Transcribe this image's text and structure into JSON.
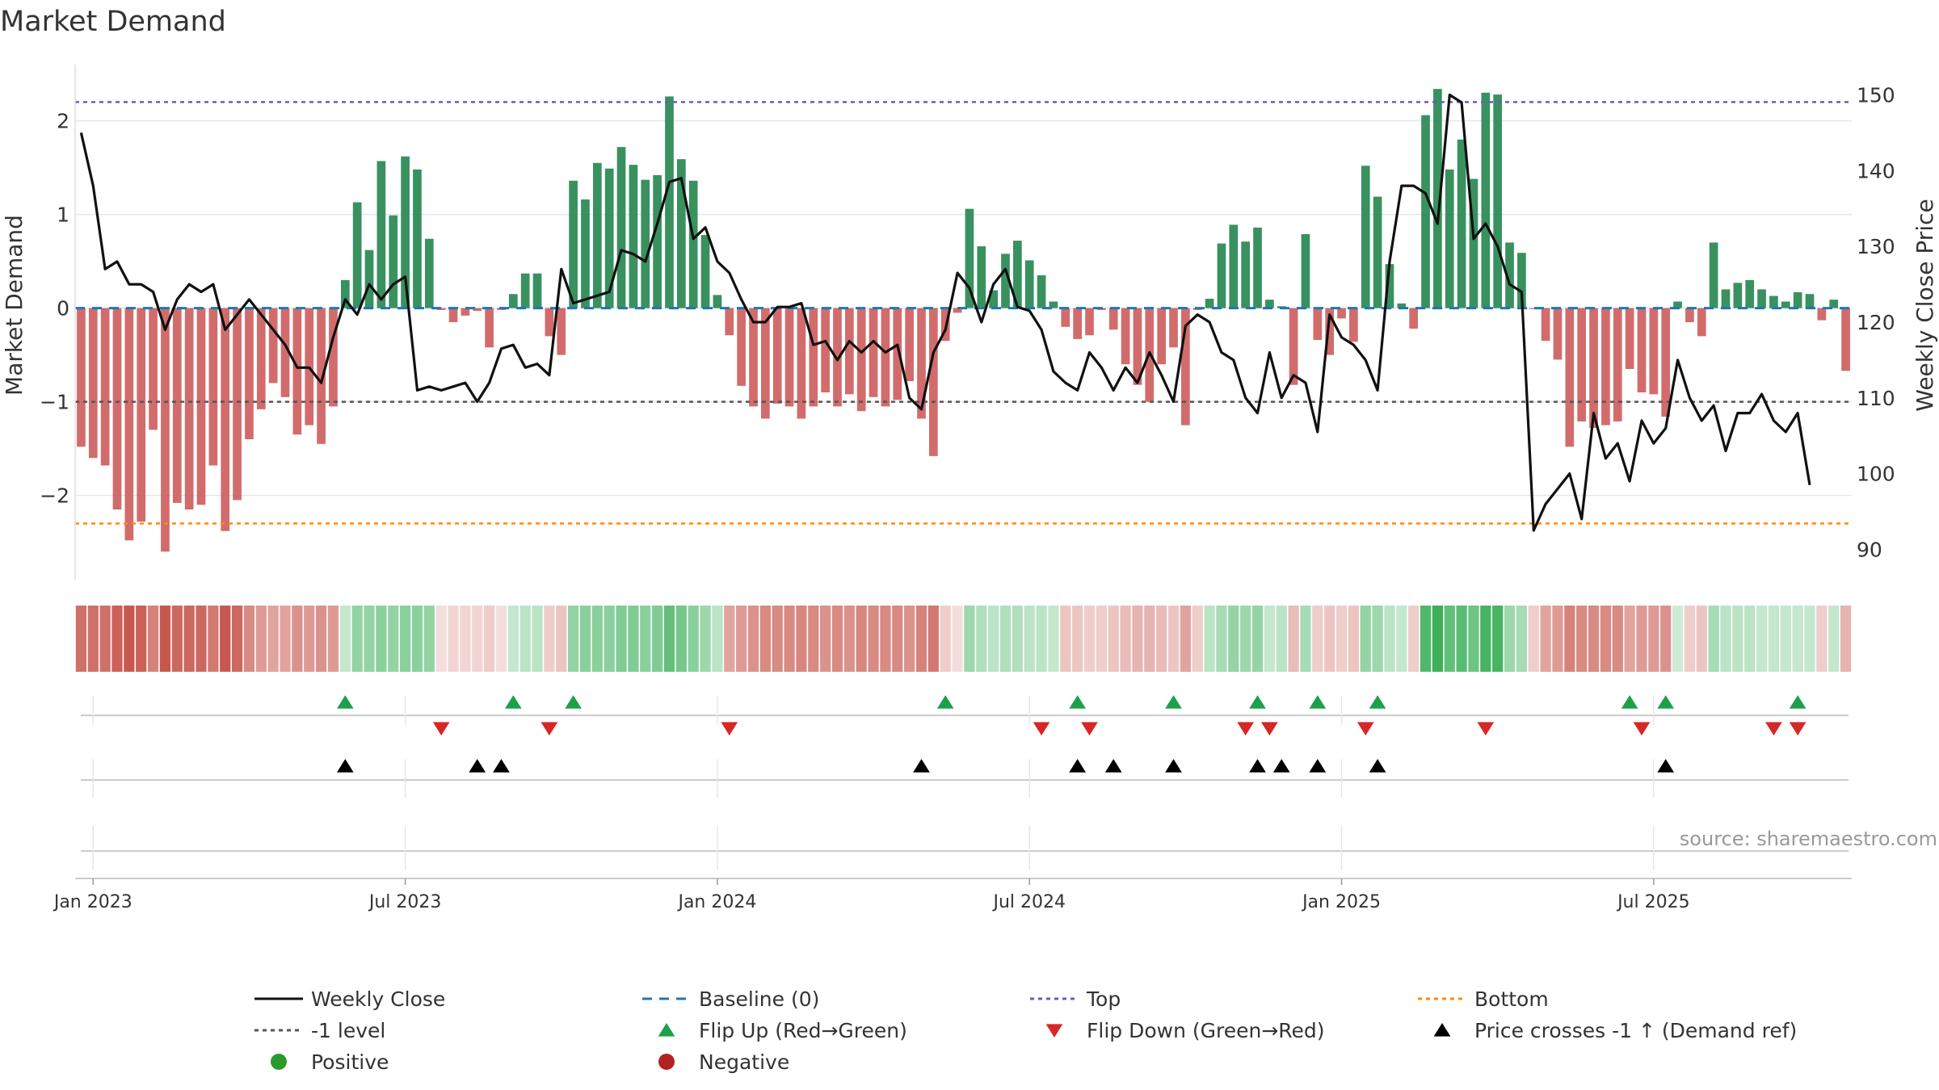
{
  "chart_data": {
    "type": "bar",
    "title": "Market Demand",
    "ylabel_left": "Market Demand",
    "ylabel_right": "Weekly Close Price",
    "ylim_left": [
      -2.9,
      2.6
    ],
    "ylim_right": [
      86,
      154
    ],
    "yticks_left": [
      2,
      1,
      0,
      -1,
      -2
    ],
    "yticks_left_labels": [
      "2",
      "1",
      "0",
      "−1",
      "−2"
    ],
    "yticks_right": [
      150,
      140,
      130,
      120,
      110,
      100,
      90
    ],
    "yticks_right_labels": [
      "150",
      "140",
      "130",
      "120",
      "110",
      "100",
      "90"
    ],
    "x_ticks": [
      "Jan 2023",
      "Jul 2023",
      "Jan 2024",
      "Jul 2024",
      "Jan 2025",
      "Jul 2025"
    ],
    "x_tick_weeks": [
      1,
      27,
      53,
      79,
      105,
      131
    ],
    "ref_lines": {
      "top": 2.2,
      "bottom": -2.3,
      "minus_one": -1,
      "baseline": 0
    },
    "demand": [
      -1.48,
      -1.6,
      -1.68,
      -2.15,
      -2.48,
      -2.28,
      -1.3,
      -2.6,
      -2.08,
      -2.15,
      -2.1,
      -1.68,
      -2.38,
      -2.05,
      -1.4,
      -1.08,
      -0.8,
      -0.95,
      -1.35,
      -1.25,
      -1.45,
      -1.05,
      0.3,
      1.13,
      0.62,
      1.57,
      0.99,
      1.62,
      1.48,
      0.74,
      -0.02,
      -0.15,
      -0.08,
      -0.03,
      -0.42,
      -0.02,
      0.15,
      0.37,
      0.37,
      -0.3,
      -0.5,
      1.36,
      1.16,
      1.55,
      1.49,
      1.72,
      1.53,
      1.37,
      1.42,
      2.26,
      1.59,
      1.36,
      0.78,
      0.14,
      -0.29,
      -0.83,
      -1.05,
      -1.18,
      -1.02,
      -1.05,
      -1.18,
      -1.05,
      -0.9,
      -1.05,
      -0.92,
      -1.1,
      -0.95,
      -1.05,
      -0.98,
      -0.78,
      -1.18,
      -1.58,
      -0.35,
      -0.05,
      1.06,
      0.66,
      0.19,
      0.58,
      0.72,
      0.51,
      0.35,
      0.07,
      -0.2,
      -0.33,
      -0.29,
      -0.02,
      -0.23,
      -0.6,
      -0.82,
      -1.0,
      -0.6,
      -0.42,
      -1.25,
      -0.02,
      0.1,
      0.69,
      0.89,
      0.71,
      0.86,
      0.09,
      0.02,
      -0.82,
      0.79,
      -0.34,
      -0.5,
      -0.11,
      -0.36,
      1.52,
      1.19,
      0.47,
      0.05,
      -0.22,
      2.06,
      2.34,
      1.48,
      1.8,
      1.38,
      2.3,
      2.28,
      0.7,
      0.59,
      -0.01,
      -0.35,
      -0.55,
      -1.48,
      -1.21,
      -1.28,
      -1.25,
      -1.21,
      -0.65,
      -0.9,
      -0.92,
      -1.16,
      0.07,
      -0.15,
      -0.3,
      0.7,
      0.2,
      0.27,
      0.3,
      0.2,
      0.13,
      0.07,
      0.17,
      0.15,
      -0.13,
      0.09,
      -0.67
    ],
    "close": [
      145,
      138,
      127,
      128,
      125,
      125,
      124,
      119,
      123,
      125,
      124,
      125,
      119,
      121,
      123,
      121,
      119,
      117,
      114,
      114,
      112,
      118,
      123,
      121,
      125,
      123,
      125,
      126,
      111,
      111.5,
      111,
      111.5,
      112,
      109.5,
      112,
      116.5,
      117,
      114,
      114.5,
      113,
      127,
      122.5,
      123,
      123.5,
      124,
      129.5,
      129,
      128,
      133,
      138.5,
      139,
      131,
      132.5,
      128,
      126.5,
      123,
      120,
      120,
      122,
      122,
      122.5,
      117,
      117.5,
      115,
      117.5,
      116,
      117.5,
      116,
      117,
      110,
      108.5,
      116,
      119,
      126.5,
      124.5,
      120,
      125,
      127,
      122,
      121.5,
      119,
      113.5,
      112,
      111,
      116,
      114,
      111,
      114,
      112,
      116,
      113,
      109.5,
      119.5,
      121,
      120,
      116,
      115,
      110,
      108,
      116,
      110,
      113,
      112,
      105.5,
      121,
      118,
      117,
      115,
      111,
      128,
      138,
      138,
      137,
      133,
      150,
      149,
      131,
      133,
      130,
      125,
      124,
      92.5,
      96,
      98,
      100,
      94,
      108,
      102,
      104,
      99,
      107,
      104,
      106,
      115,
      110,
      107,
      109,
      103,
      108,
      108,
      110.5,
      107,
      105.5,
      108,
      98.5
    ],
    "heat_opacity": [
      0.85,
      0.85,
      0.85,
      0.95,
      1,
      0.95,
      0.75,
      1,
      0.9,
      0.9,
      0.9,
      0.8,
      1,
      0.9,
      0.7,
      0.6,
      0.55,
      0.55,
      0.65,
      0.6,
      0.65,
      0.6,
      0.3,
      0.55,
      0.55,
      0.6,
      0.55,
      0.6,
      0.6,
      0.55,
      0.2,
      0.25,
      0.25,
      0.25,
      0.3,
      0.2,
      0.3,
      0.35,
      0.35,
      0.3,
      0.35,
      0.55,
      0.6,
      0.6,
      0.6,
      0.65,
      0.65,
      0.6,
      0.65,
      0.8,
      0.7,
      0.6,
      0.5,
      0.35,
      0.55,
      0.6,
      0.65,
      0.7,
      0.7,
      0.7,
      0.72,
      0.7,
      0.65,
      0.7,
      0.65,
      0.72,
      0.7,
      0.7,
      0.7,
      0.65,
      0.75,
      0.8,
      0.3,
      0.2,
      0.5,
      0.4,
      0.35,
      0.4,
      0.4,
      0.35,
      0.35,
      0.3,
      0.35,
      0.35,
      0.3,
      0.3,
      0.35,
      0.4,
      0.45,
      0.45,
      0.4,
      0.35,
      0.55,
      0.3,
      0.35,
      0.45,
      0.55,
      0.5,
      0.55,
      0.3,
      0.35,
      0.4,
      0.45,
      0.3,
      0.35,
      0.3,
      0.35,
      0.55,
      0.5,
      0.35,
      0.3,
      0.3,
      0.9,
      1,
      0.8,
      0.85,
      0.75,
      0.95,
      0.95,
      0.5,
      0.45,
      0.3,
      0.55,
      0.6,
      0.75,
      0.7,
      0.7,
      0.7,
      0.7,
      0.55,
      0.6,
      0.6,
      0.65,
      0.25,
      0.3,
      0.35,
      0.45,
      0.35,
      0.35,
      0.35,
      0.3,
      0.3,
      0.3,
      0.3,
      0.3,
      0.3,
      0.3,
      0.45
    ],
    "flip_up_weeks": [
      22,
      36,
      41,
      72,
      83,
      91,
      98,
      103,
      108,
      129,
      132,
      143
    ],
    "flip_down_weeks": [
      30,
      39,
      54,
      80,
      84,
      97,
      99,
      107,
      117,
      130,
      141,
      143
    ],
    "price_cross_weeks": [
      22,
      33,
      35,
      70,
      83,
      86,
      91,
      98,
      100,
      103,
      108,
      132
    ],
    "legend": [
      "Weekly Close",
      "Baseline (0)",
      "Top",
      "Bottom",
      "-1 level",
      "Flip Up (Red→Green)",
      "Flip Down (Green→Red)",
      "Price crosses -1 ↑ (Demand ref)",
      "Positive",
      "Negative"
    ],
    "source": "source: sharemaestro.com"
  },
  "colors": {
    "positive": "#2e8b57",
    "negative": "#cd5c5c",
    "heat_positive": "#3cb05a",
    "heat_negative": "#c8584f",
    "close_line": "#111111",
    "top_line": "#6a5acd",
    "bottom_line": "#ff8c00",
    "baseline": "#1f77b4",
    "minus_one": "#555555",
    "flip_up": "#1ea04a",
    "flip_down": "#d62728",
    "cross": "#000000",
    "legend_positive": "#2a9a2a",
    "legend_negative": "#b22222"
  }
}
